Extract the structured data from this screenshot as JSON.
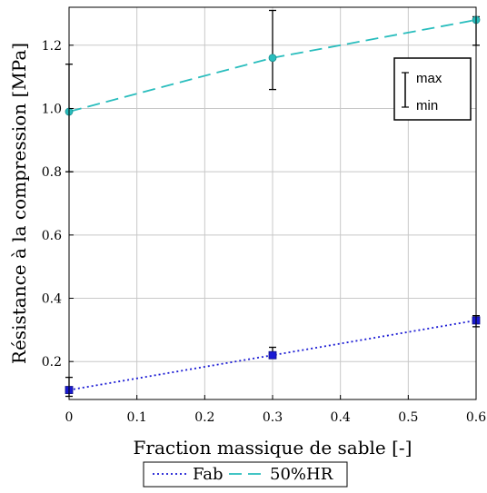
{
  "chart_data": {
    "type": "line",
    "xlabel": "Fraction massique de sable [-]",
    "ylabel": "Résistance à la compression [MPa]",
    "xlim": [
      0,
      0.6
    ],
    "ylim": [
      0.08,
      1.32
    ],
    "x_ticks": [
      "0",
      "0.1",
      "0.2",
      "0.3",
      "0.4",
      "0.5",
      "0.6"
    ],
    "y_ticks": [
      "0.2",
      "0.4",
      "0.6",
      "0.8",
      "1.0",
      "1.2"
    ],
    "grid": true,
    "legend_position": "bottom",
    "series": [
      {
        "name": "Fab",
        "color": "#1a1ad4",
        "line_style": "dotted",
        "marker": "square",
        "points": [
          {
            "x": 0,
            "y": 0.11,
            "min": 0.09,
            "max": 0.15
          },
          {
            "x": 0.3,
            "y": 0.22,
            "min": 0.21,
            "max": 0.245
          },
          {
            "x": 0.6,
            "y": 0.33,
            "min": 0.31,
            "max": 0.345
          }
        ]
      },
      {
        "name": "50%HR",
        "color": "#29bdbd",
        "line_style": "dashed",
        "marker": "circle",
        "points": [
          {
            "x": 0,
            "y": 0.99,
            "min": 0.8,
            "max": 1.14
          },
          {
            "x": 0.3,
            "y": 1.16,
            "min": 1.06,
            "max": 1.31
          },
          {
            "x": 0.6,
            "y": 1.28,
            "min": 1.2,
            "max": 1.29
          }
        ]
      }
    ],
    "annotation": {
      "max_label": "max",
      "min_label": "min"
    }
  }
}
